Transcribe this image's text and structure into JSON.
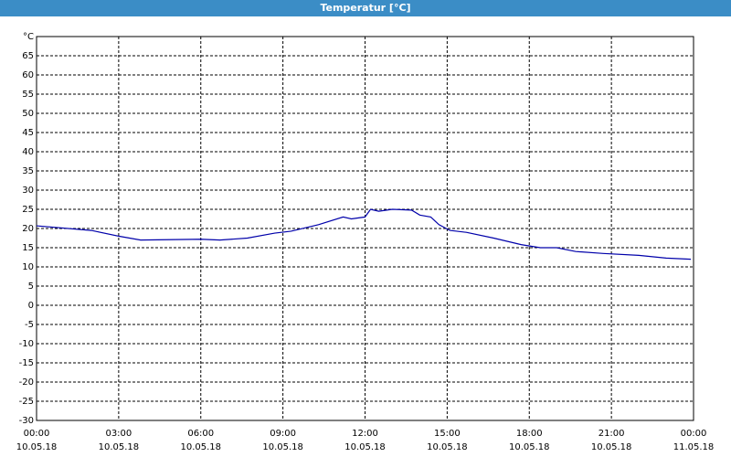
{
  "window_title": "Temperatur [°C]",
  "chart_data": {
    "type": "line",
    "x": [
      0,
      2,
      3,
      3.8,
      6,
      6.7,
      7.7,
      8.7,
      9.3,
      10.3,
      11.2,
      11.5,
      12,
      12.2,
      12.5,
      13,
      13.7,
      14,
      14.4,
      14.7,
      15.1,
      15.7,
      16.7,
      17.7,
      18.4,
      19,
      19.7,
      20.7,
      22,
      23,
      23.9
    ],
    "series": [
      {
        "name": "Temperatur",
        "color": "#0000aa",
        "values": [
          20.7,
          19.5,
          18,
          17,
          17.2,
          17,
          17.5,
          18.8,
          19.3,
          21,
          23,
          22.5,
          23,
          25,
          24.5,
          25,
          24.8,
          23.5,
          23,
          21,
          19.5,
          19,
          17.5,
          15.8,
          15,
          15,
          14,
          13.5,
          13,
          12.3,
          12
        ]
      }
    ],
    "xlim": [
      0,
      24
    ],
    "xticks": [
      {
        "value": 0,
        "label": "00:00"
      },
      {
        "value": 3,
        "label": "03:00"
      },
      {
        "value": 6,
        "label": "06:00"
      },
      {
        "value": 9,
        "label": "09:00"
      },
      {
        "value": 12,
        "label": "12:00"
      },
      {
        "value": 15,
        "label": "15:00"
      },
      {
        "value": 18,
        "label": "18:00"
      },
      {
        "value": 21,
        "label": "21:00"
      },
      {
        "value": 24,
        "label": "00:00"
      }
    ],
    "xtick_dates": [
      "10.05.18",
      "10.05.18",
      "10.05.18",
      "10.05.18",
      "10.05.18",
      "10.05.18",
      "10.05.18",
      "10.05.18",
      "11.05.18"
    ],
    "ylim": [
      -30,
      70
    ],
    "yticks": [
      -30,
      -25,
      -20,
      -15,
      -10,
      -5,
      0,
      5,
      10,
      15,
      20,
      25,
      30,
      35,
      40,
      45,
      50,
      55,
      60,
      65,
      {
        "value": 70,
        "label": "°C"
      }
    ],
    "grid": true
  }
}
